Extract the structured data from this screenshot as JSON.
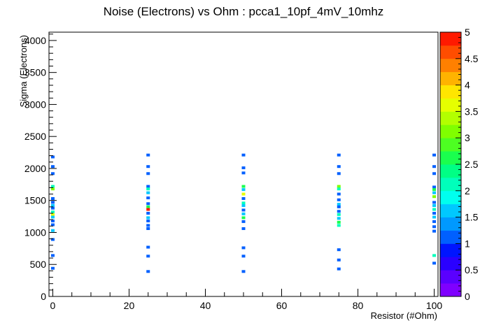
{
  "chart_data": {
    "type": "heatmap",
    "title": "Noise (Electrons) vs Ohm : pcca1_10pf_4mV_10mhz",
    "xlabel": "Resistor (#Ohm)",
    "ylabel": "Sigma (Electrons)",
    "xlim": [
      -1,
      101
    ],
    "ylim": [
      0,
      4130
    ],
    "zlim": [
      0,
      5
    ],
    "x_ticks": [
      0,
      20,
      40,
      60,
      80,
      100
    ],
    "y_ticks": [
      0,
      500,
      1000,
      1500,
      2000,
      2500,
      3000,
      3500,
      4000
    ],
    "z_ticks": [
      0,
      0.5,
      1,
      1.5,
      2,
      2.5,
      3,
      3.5,
      4,
      4.5,
      5
    ],
    "palette": [
      "#7f00ff",
      "#5a00ff",
      "#2a00ff",
      "#0015ff",
      "#0060ff",
      "#0099ff",
      "#00c8ff",
      "#00ffee",
      "#00ffbb",
      "#00ff85",
      "#1aff4e",
      "#4dff22",
      "#80ff00",
      "#b3ff00",
      "#e6ff00",
      "#ffe600",
      "#ffb300",
      "#ff8000",
      "#ff4d00",
      "#ff1a00"
    ],
    "bins": [
      {
        "x": 0,
        "y": 2180,
        "z": 1
      },
      {
        "x": 0,
        "y": 2030,
        "z": 1
      },
      {
        "x": 0,
        "y": 1920,
        "z": 1
      },
      {
        "x": 0,
        "y": 1720,
        "z": 2
      },
      {
        "x": 0,
        "y": 1680,
        "z": 3
      },
      {
        "x": 0,
        "y": 1530,
        "z": 1
      },
      {
        "x": 0,
        "y": 1470,
        "z": 1
      },
      {
        "x": 0,
        "y": 1420,
        "z": 1.5
      },
      {
        "x": 0,
        "y": 1380,
        "z": 1
      },
      {
        "x": 0,
        "y": 1320,
        "z": 2
      },
      {
        "x": 0,
        "y": 1280,
        "z": 3.5
      },
      {
        "x": 0,
        "y": 1240,
        "z": 1.5
      },
      {
        "x": 0,
        "y": 1180,
        "z": 1
      },
      {
        "x": 0,
        "y": 1120,
        "z": 1
      },
      {
        "x": 0,
        "y": 1030,
        "z": 1.5
      },
      {
        "x": 0,
        "y": 890,
        "z": 1
      },
      {
        "x": 0,
        "y": 640,
        "z": 1
      },
      {
        "x": 0,
        "y": 440,
        "z": 1
      },
      {
        "x": 25,
        "y": 2210,
        "z": 1
      },
      {
        "x": 25,
        "y": 2030,
        "z": 1
      },
      {
        "x": 25,
        "y": 1920,
        "z": 1
      },
      {
        "x": 25,
        "y": 1720,
        "z": 1
      },
      {
        "x": 25,
        "y": 1680,
        "z": 2
      },
      {
        "x": 25,
        "y": 1620,
        "z": 1.5
      },
      {
        "x": 25,
        "y": 1540,
        "z": 1
      },
      {
        "x": 25,
        "y": 1450,
        "z": 1
      },
      {
        "x": 25,
        "y": 1400,
        "z": 2.5
      },
      {
        "x": 25,
        "y": 1360,
        "z": 5
      },
      {
        "x": 25,
        "y": 1300,
        "z": 1
      },
      {
        "x": 25,
        "y": 1230,
        "z": 1.5
      },
      {
        "x": 25,
        "y": 1180,
        "z": 1
      },
      {
        "x": 25,
        "y": 1110,
        "z": 1
      },
      {
        "x": 25,
        "y": 1060,
        "z": 1
      },
      {
        "x": 25,
        "y": 770,
        "z": 1
      },
      {
        "x": 25,
        "y": 630,
        "z": 1
      },
      {
        "x": 25,
        "y": 390,
        "z": 1
      },
      {
        "x": 50,
        "y": 2210,
        "z": 1
      },
      {
        "x": 50,
        "y": 2010,
        "z": 1
      },
      {
        "x": 50,
        "y": 1930,
        "z": 1
      },
      {
        "x": 50,
        "y": 1720,
        "z": 2.5
      },
      {
        "x": 50,
        "y": 1670,
        "z": 1.5
      },
      {
        "x": 50,
        "y": 1600,
        "z": 3.5
      },
      {
        "x": 50,
        "y": 1530,
        "z": 1
      },
      {
        "x": 50,
        "y": 1460,
        "z": 2
      },
      {
        "x": 50,
        "y": 1420,
        "z": 1.5
      },
      {
        "x": 50,
        "y": 1350,
        "z": 1
      },
      {
        "x": 50,
        "y": 1290,
        "z": 1.5
      },
      {
        "x": 50,
        "y": 1230,
        "z": 2.5
      },
      {
        "x": 50,
        "y": 1170,
        "z": 1
      },
      {
        "x": 50,
        "y": 1060,
        "z": 1
      },
      {
        "x": 50,
        "y": 760,
        "z": 1
      },
      {
        "x": 50,
        "y": 630,
        "z": 1
      },
      {
        "x": 50,
        "y": 390,
        "z": 1
      },
      {
        "x": 75,
        "y": 2210,
        "z": 1
      },
      {
        "x": 75,
        "y": 2030,
        "z": 1
      },
      {
        "x": 75,
        "y": 1920,
        "z": 1
      },
      {
        "x": 75,
        "y": 1720,
        "z": 3
      },
      {
        "x": 75,
        "y": 1680,
        "z": 2
      },
      {
        "x": 75,
        "y": 1600,
        "z": 1
      },
      {
        "x": 75,
        "y": 1510,
        "z": 1
      },
      {
        "x": 75,
        "y": 1440,
        "z": 1.5
      },
      {
        "x": 75,
        "y": 1400,
        "z": 1
      },
      {
        "x": 75,
        "y": 1330,
        "z": 1
      },
      {
        "x": 75,
        "y": 1280,
        "z": 2
      },
      {
        "x": 75,
        "y": 1220,
        "z": 1.5
      },
      {
        "x": 75,
        "y": 1160,
        "z": 2.5
      },
      {
        "x": 75,
        "y": 1110,
        "z": 2
      },
      {
        "x": 75,
        "y": 730,
        "z": 1
      },
      {
        "x": 75,
        "y": 570,
        "z": 1
      },
      {
        "x": 75,
        "y": 430,
        "z": 1
      },
      {
        "x": 100,
        "y": 2210,
        "z": 1
      },
      {
        "x": 100,
        "y": 2030,
        "z": 1
      },
      {
        "x": 100,
        "y": 1920,
        "z": 1
      },
      {
        "x": 100,
        "y": 1710,
        "z": 1
      },
      {
        "x": 100,
        "y": 1670,
        "z": 2.5
      },
      {
        "x": 100,
        "y": 1620,
        "z": 1.5
      },
      {
        "x": 100,
        "y": 1560,
        "z": 3
      },
      {
        "x": 100,
        "y": 1470,
        "z": 1
      },
      {
        "x": 100,
        "y": 1420,
        "z": 1.5
      },
      {
        "x": 100,
        "y": 1360,
        "z": 2
      },
      {
        "x": 100,
        "y": 1300,
        "z": 1
      },
      {
        "x": 100,
        "y": 1240,
        "z": 1.5
      },
      {
        "x": 100,
        "y": 1170,
        "z": 1
      },
      {
        "x": 100,
        "y": 1090,
        "z": 1
      },
      {
        "x": 100,
        "y": 1020,
        "z": 1
      },
      {
        "x": 100,
        "y": 640,
        "z": 2
      },
      {
        "x": 100,
        "y": 520,
        "z": 1
      }
    ]
  }
}
